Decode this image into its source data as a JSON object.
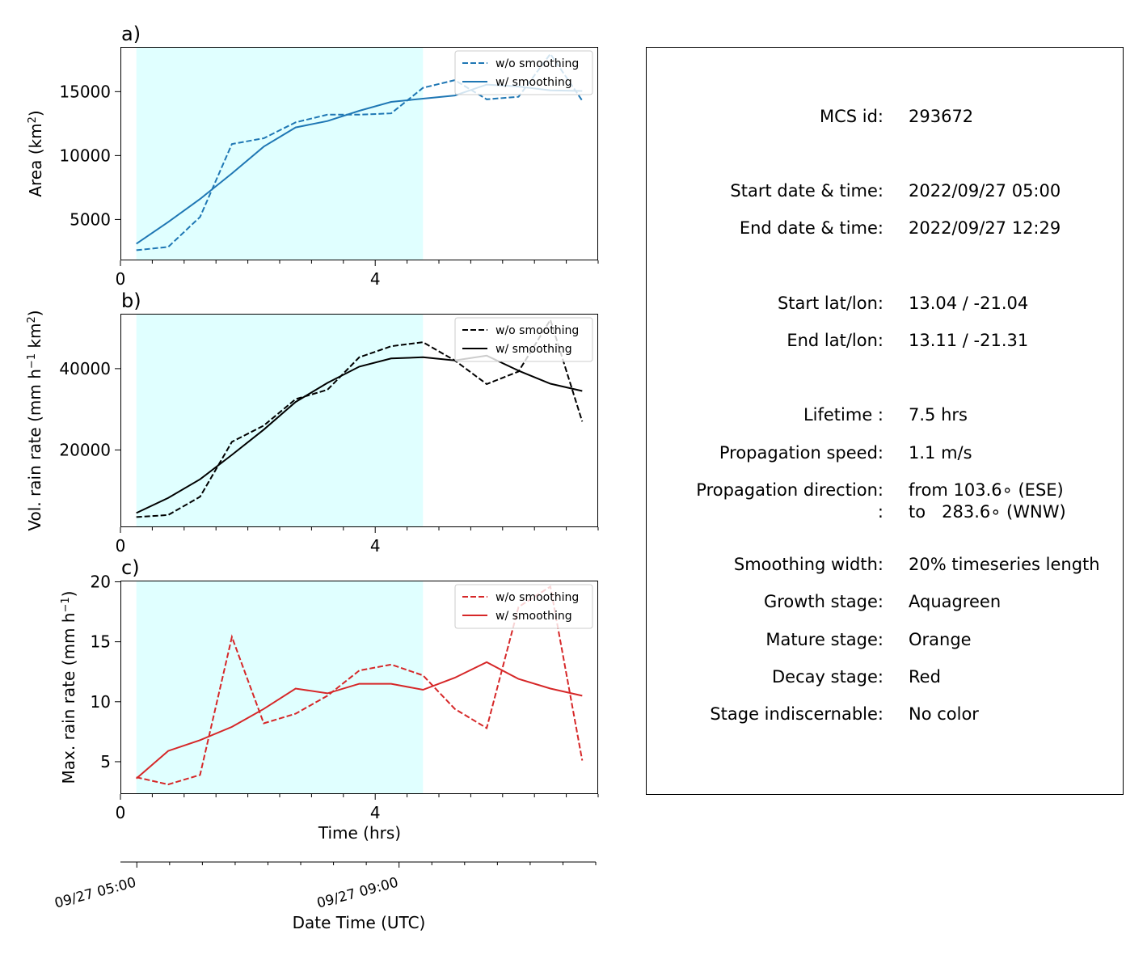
{
  "chart_data": [
    {
      "type": "line",
      "panel_label": "a)",
      "ylabel": "Area  (km²)",
      "ylabel_main": "Area  (km",
      "ylabel_sup": "2",
      "ylabel_close": ")",
      "x_ticks": [
        0,
        4
      ],
      "y_ticks": [
        5000,
        10000,
        15000
      ],
      "xlim": [
        0,
        7.5
      ],
      "ylim": [
        1800,
        18500
      ],
      "shade_x": [
        0.25,
        4.75
      ],
      "legend_position": "upper right",
      "color": "#1f77b4",
      "series": [
        {
          "name": "w/o smoothing",
          "style": "dashed",
          "x": [
            0.25,
            0.75,
            1.25,
            1.75,
            2.25,
            2.75,
            3.25,
            3.75,
            4.25,
            4.75,
            5.25,
            5.75,
            6.25,
            6.75,
            7.25
          ],
          "y": [
            2600,
            2850,
            5200,
            10900,
            11350,
            12600,
            13200,
            13200,
            13300,
            15300,
            15900,
            14400,
            14600,
            17950,
            14300
          ]
        },
        {
          "name": "w/ smoothing",
          "style": "solid",
          "x": [
            0.25,
            0.75,
            1.25,
            1.75,
            2.25,
            2.75,
            3.25,
            3.75,
            4.25,
            4.75,
            5.25,
            5.75,
            6.25,
            6.75,
            7.25
          ],
          "y": [
            3100,
            4800,
            6600,
            8600,
            10700,
            12200,
            12700,
            13500,
            14200,
            14450,
            14700,
            15550,
            15400,
            15100,
            15050
          ]
        }
      ]
    },
    {
      "type": "line",
      "panel_label": "b)",
      "ylabel": "Vol. rain rate (mm h⁻¹ km²)",
      "ylabel_main": "Vol. rain rate (mm h",
      "ylabel_sup1": "−1",
      "ylabel_mid": " km",
      "ylabel_sup2": "2",
      "ylabel_close": ")",
      "x_ticks": [
        0,
        4
      ],
      "y_ticks": [
        20000,
        40000
      ],
      "xlim": [
        0,
        7.5
      ],
      "ylim": [
        1000,
        53500
      ],
      "shade_x": [
        0.25,
        4.75
      ],
      "legend_position": "upper right",
      "color": "#000000",
      "series": [
        {
          "name": "w/o smoothing",
          "style": "dashed",
          "x": [
            0.25,
            0.75,
            1.25,
            1.75,
            2.25,
            2.75,
            3.25,
            3.75,
            4.25,
            4.75,
            5.25,
            5.75,
            6.25,
            6.75,
            7.25
          ],
          "y": [
            3500,
            4000,
            8500,
            22000,
            26000,
            32500,
            34800,
            42800,
            45500,
            46500,
            42000,
            36200,
            39300,
            52000,
            27000
          ]
        },
        {
          "name": "w/ smoothing",
          "style": "solid",
          "x": [
            0.25,
            0.75,
            1.25,
            1.75,
            2.25,
            2.75,
            3.25,
            3.75,
            4.25,
            4.75,
            5.25,
            5.75,
            6.25,
            6.75,
            7.25
          ],
          "y": [
            4500,
            8200,
            12800,
            18800,
            25000,
            31800,
            36500,
            40500,
            42500,
            42800,
            42000,
            43200,
            39500,
            36300,
            34500
          ]
        }
      ]
    },
    {
      "type": "line",
      "panel_label": "c)",
      "ylabel": "Max. rain rate  (mm h⁻¹)",
      "ylabel_main": "Max. rain rate  (mm h",
      "ylabel_sup": "−1",
      "ylabel_close": ")",
      "xlabel": "Time (hrs)",
      "x_ticks": [
        0,
        4
      ],
      "y_ticks": [
        5,
        10,
        15,
        20
      ],
      "xlim": [
        0,
        7.5
      ],
      "ylim": [
        2.3,
        20.1
      ],
      "shade_x": [
        0.25,
        4.75
      ],
      "legend_position": "upper right",
      "color": "#d62728",
      "series": [
        {
          "name": "w/o smoothing",
          "style": "dashed",
          "x": [
            0.25,
            0.75,
            1.25,
            1.75,
            2.25,
            2.75,
            3.25,
            3.75,
            4.25,
            4.75,
            5.25,
            5.75,
            6.25,
            6.75,
            7.25
          ],
          "y": [
            3.7,
            3.1,
            3.9,
            15.4,
            8.2,
            9.0,
            10.5,
            12.6,
            13.1,
            12.2,
            9.4,
            7.8,
            17.9,
            19.6,
            5.1
          ]
        },
        {
          "name": "w/ smoothing",
          "style": "solid",
          "x": [
            0.25,
            0.75,
            1.25,
            1.75,
            2.25,
            2.75,
            3.25,
            3.75,
            4.25,
            4.75,
            5.25,
            5.75,
            6.25,
            6.75,
            7.25
          ],
          "y": [
            3.6,
            5.9,
            6.8,
            7.9,
            9.4,
            11.1,
            10.7,
            11.5,
            11.5,
            11.0,
            12.0,
            13.3,
            11.9,
            11.1,
            10.5
          ]
        }
      ]
    }
  ],
  "datetime_axis": {
    "label": "Date Time (UTC)",
    "tick_labels": [
      "09/27 05:00",
      "09/27 09:00"
    ],
    "tick_values_hrs": [
      0,
      4
    ]
  },
  "info_box": {
    "rows": [
      {
        "key": "MCS id:",
        "value": "293672"
      },
      {
        "key": "Start date & time:",
        "value": "2022/09/27 05:00"
      },
      {
        "key": "End date & time:",
        "value": "2022/09/27 12:29"
      },
      {
        "key": "Start lat/lon:",
        "value": "13.04 / -21.04"
      },
      {
        "key": "End lat/lon:",
        "value": "13.11 / -21.31"
      },
      {
        "key": "Lifetime :",
        "value": "7.5 hrs"
      },
      {
        "key": "Propagation speed:",
        "value": "1.1 m/s"
      },
      {
        "key": "Propagation direction:",
        "value": "from 103.6∘ (ESE)"
      },
      {
        "key": ":",
        "value": "to   283.6∘ (WNW)"
      },
      {
        "key": "Smoothing width:",
        "value": "20% timeseries length"
      },
      {
        "key": "Growth stage:",
        "value": "Aquagreen"
      },
      {
        "key": "Mature stage:",
        "value": "Orange"
      },
      {
        "key": "Decay stage:",
        "value": "Red"
      },
      {
        "key": "Stage indiscernable:",
        "value": "No color"
      }
    ]
  },
  "colors": {
    "growth_shade": "#e0ffff",
    "area": "#1f77b4",
    "volrain": "#000000",
    "maxrain": "#d62728"
  }
}
